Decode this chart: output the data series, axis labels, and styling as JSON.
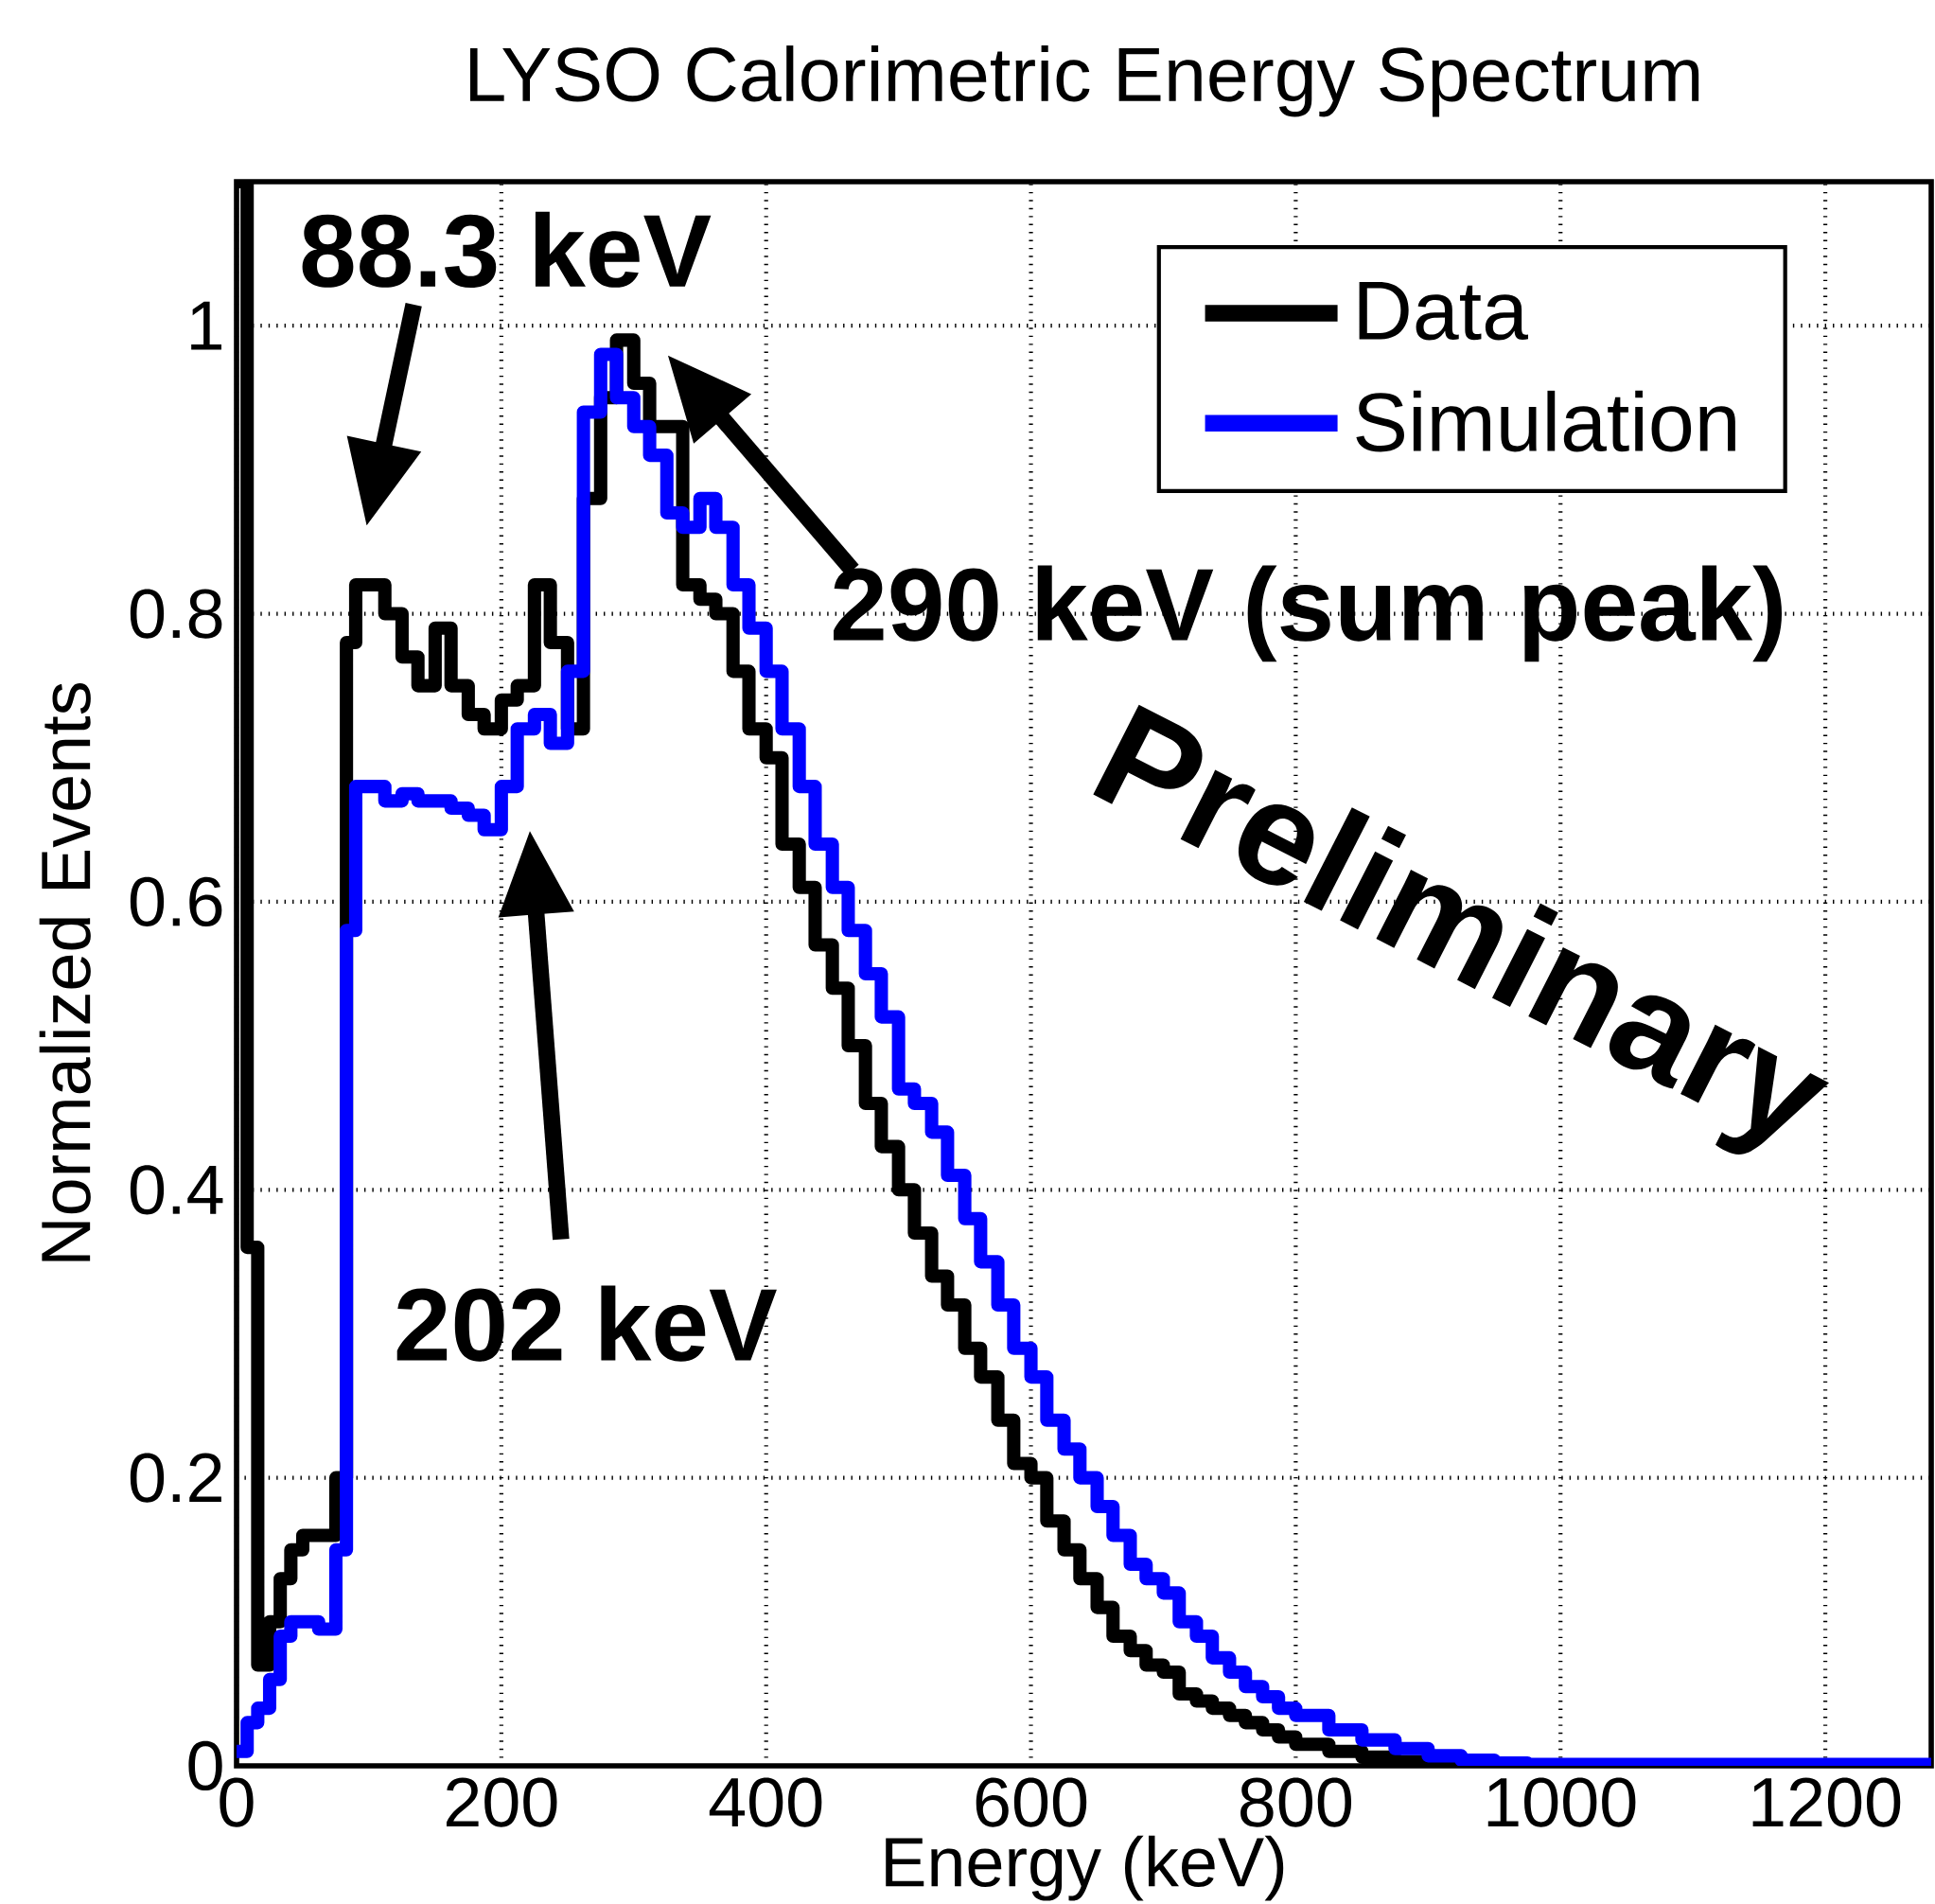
{
  "chart_data": {
    "type": "step",
    "title": "LYSO Calorimetric Energy Spectrum",
    "xlabel": "Energy (keV)",
    "ylabel": "Normalized Events",
    "xlim": [
      0,
      1280
    ],
    "ylim": [
      0,
      1.1
    ],
    "xticks": [
      0,
      200,
      400,
      600,
      800,
      1000,
      1200
    ],
    "yticks": [
      0,
      0.2,
      0.4,
      0.6,
      0.8,
      1
    ],
    "grid": true,
    "legend": "top right",
    "series": [
      {
        "name": "Data",
        "color": "#000000",
        "x": [
          0,
          8,
          16,
          25,
          33,
          41,
          50,
          75,
          83,
          90,
          112,
          125,
          137,
          150,
          162,
          175,
          187,
          200,
          212,
          225,
          237,
          250,
          262,
          275,
          287,
          300,
          312,
          325,
          337,
          350,
          362,
          375,
          387,
          400,
          412,
          425,
          437,
          450,
          462,
          475,
          487,
          500,
          512,
          525,
          537,
          550,
          562,
          575,
          587,
          600,
          612,
          625,
          637,
          650,
          662,
          675,
          687,
          700,
          712,
          725,
          737,
          750,
          762,
          775,
          787,
          800,
          825,
          850,
          875,
          900,
          925,
          1280
        ],
        "values": [
          1.1,
          0.36,
          0.07,
          0.1,
          0.13,
          0.15,
          0.16,
          0.2,
          0.78,
          0.82,
          0.8,
          0.77,
          0.75,
          0.79,
          0.75,
          0.73,
          0.72,
          0.74,
          0.75,
          0.82,
          0.78,
          0.72,
          0.88,
          0.95,
          0.99,
          0.96,
          0.93,
          0.93,
          0.82,
          0.81,
          0.8,
          0.76,
          0.72,
          0.7,
          0.64,
          0.61,
          0.57,
          0.54,
          0.5,
          0.46,
          0.43,
          0.4,
          0.37,
          0.34,
          0.32,
          0.29,
          0.27,
          0.24,
          0.21,
          0.2,
          0.17,
          0.15,
          0.13,
          0.11,
          0.09,
          0.08,
          0.07,
          0.065,
          0.05,
          0.045,
          0.04,
          0.035,
          0.03,
          0.025,
          0.02,
          0.015,
          0.01,
          0.006,
          0.003,
          0.001,
          0,
          0
        ]
      },
      {
        "name": "Simulation",
        "color": "#0000ff",
        "x": [
          0,
          8,
          16,
          25,
          33,
          41,
          50,
          62,
          75,
          83,
          90,
          112,
          125,
          137,
          150,
          162,
          175,
          187,
          200,
          212,
          225,
          237,
          250,
          262,
          275,
          287,
          300,
          312,
          325,
          337,
          350,
          362,
          375,
          387,
          400,
          412,
          425,
          437,
          450,
          462,
          475,
          487,
          500,
          512,
          525,
          537,
          550,
          562,
          575,
          587,
          600,
          612,
          625,
          637,
          650,
          662,
          675,
          687,
          700,
          712,
          725,
          737,
          750,
          762,
          775,
          787,
          800,
          825,
          850,
          875,
          900,
          925,
          950,
          975,
          1280
        ],
        "values": [
          0.01,
          0.03,
          0.04,
          0.06,
          0.09,
          0.1,
          0.1,
          0.095,
          0.15,
          0.58,
          0.68,
          0.67,
          0.675,
          0.67,
          0.67,
          0.665,
          0.66,
          0.65,
          0.68,
          0.72,
          0.73,
          0.71,
          0.76,
          0.94,
          0.98,
          0.95,
          0.93,
          0.91,
          0.87,
          0.86,
          0.88,
          0.86,
          0.82,
          0.79,
          0.76,
          0.72,
          0.68,
          0.64,
          0.61,
          0.58,
          0.55,
          0.52,
          0.47,
          0.46,
          0.44,
          0.41,
          0.38,
          0.35,
          0.32,
          0.29,
          0.27,
          0.24,
          0.22,
          0.2,
          0.18,
          0.16,
          0.14,
          0.13,
          0.12,
          0.1,
          0.09,
          0.075,
          0.065,
          0.055,
          0.048,
          0.04,
          0.035,
          0.025,
          0.018,
          0.012,
          0.007,
          0.004,
          0.002,
          0.001,
          0
        ]
      }
    ],
    "annotations": [
      "88.3 keV",
      "202 keV",
      "290 keV (sum peak)",
      "Preliminary"
    ]
  }
}
